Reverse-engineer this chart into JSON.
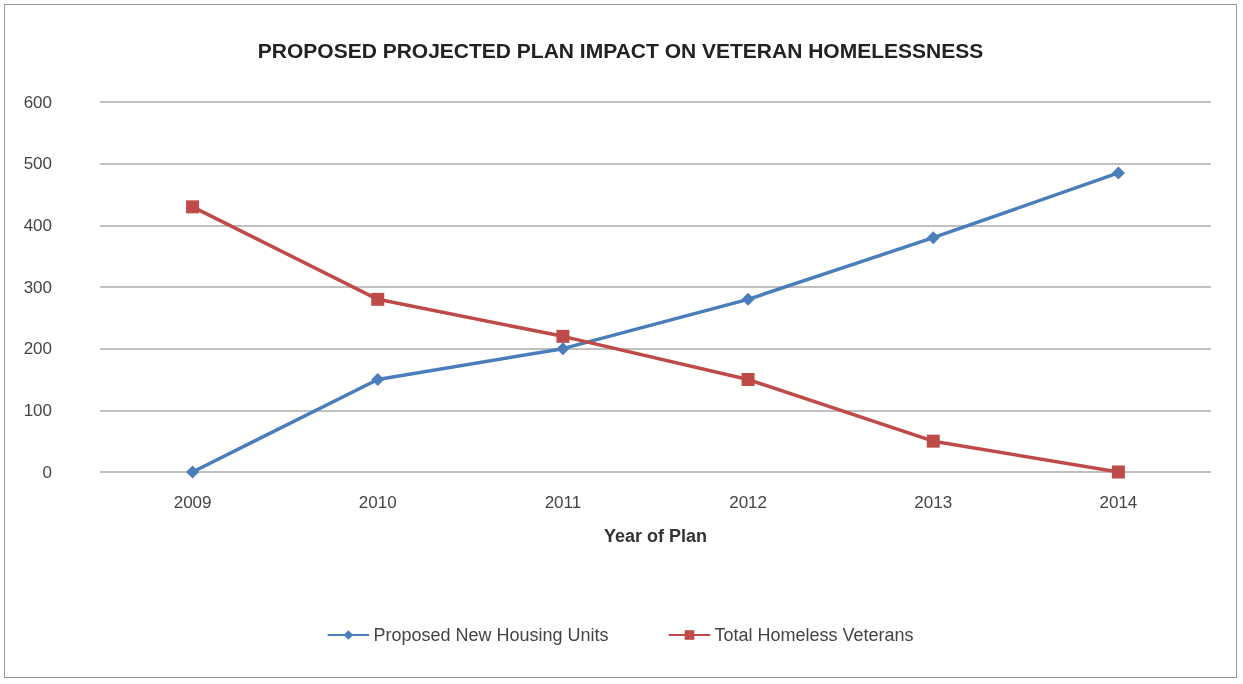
{
  "chart_data": {
    "type": "line",
    "title": "PROPOSED PROJECTED PLAN IMPACT ON VETERAN HOMELESSNESS",
    "xlabel": "Year of Plan",
    "categories": [
      "2009",
      "2010",
      "2011",
      "2012",
      "2013",
      "2014"
    ],
    "series": [
      {
        "name": "Proposed New Housing Units",
        "color": "#4a7ebb",
        "marker": "diamond",
        "values": [
          0,
          150,
          200,
          280,
          380,
          485
        ]
      },
      {
        "name": "Total Homeless Veterans",
        "color": "#be4b48",
        "marker": "square",
        "values": [
          430,
          280,
          220,
          150,
          50,
          0
        ]
      }
    ],
    "ylim": [
      0,
      600
    ],
    "yticks": [
      0,
      100,
      200,
      300,
      400,
      500,
      600
    ],
    "grid": "y",
    "legend": "bottom",
    "line_style": "solid"
  }
}
